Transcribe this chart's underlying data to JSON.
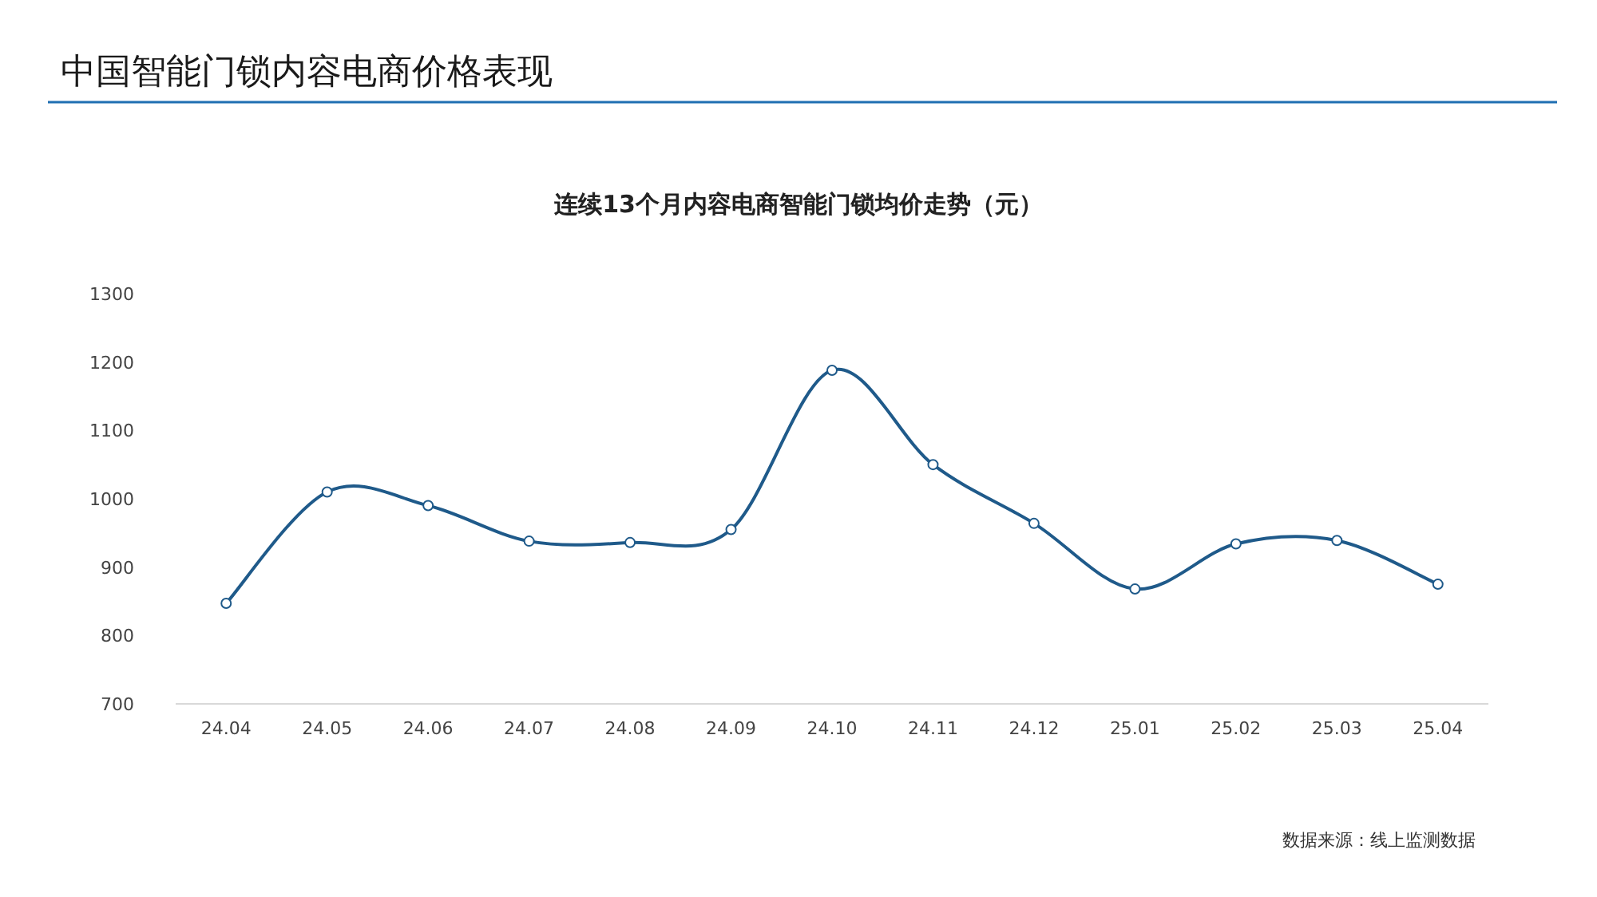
{
  "chart_data": {
    "type": "line",
    "title": "中国智能门锁内容电商价格表现",
    "subtitle": "连续13个月内容电商智能门锁均价走势（元）",
    "categories": [
      "24.04",
      "24.05",
      "24.06",
      "24.07",
      "24.08",
      "24.09",
      "24.10",
      "24.11",
      "24.12",
      "25.01",
      "25.02",
      "25.03",
      "25.04"
    ],
    "series": [
      {
        "color": "#1f5a8a",
        "values": [
          847,
          1010,
          990,
          938,
          936,
          955,
          1188,
          1050,
          964,
          868,
          934,
          939,
          875
        ]
      }
    ],
    "ylim": [
      700,
      1300
    ],
    "yticks": [
      700,
      800,
      900,
      1000,
      1100,
      1200,
      1300
    ],
    "grid": false,
    "marker": "circle",
    "line_style": "solid",
    "annotations": [
      "数据来源：线上监测数据"
    ]
  }
}
